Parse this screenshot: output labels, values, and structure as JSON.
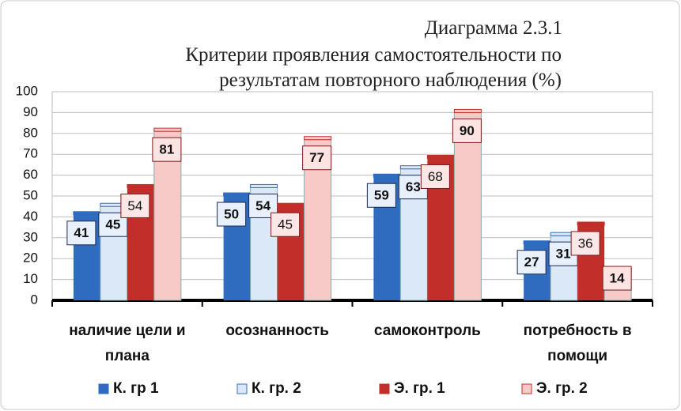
{
  "chart_data": {
    "type": "bar",
    "title": "Диаграмма 2.3.1",
    "subtitle": "Критерии проявления самостоятельности по результатам повторного наблюдения (%)",
    "categories": [
      "наличие цели и плана",
      "осознанность",
      "самоконтроль",
      "потребность в помощи"
    ],
    "series": [
      {
        "name": "К. гр 1",
        "color": "#2f6cc0",
        "values": [
          41,
          50,
          59,
          27
        ]
      },
      {
        "name": "К. гр. 2",
        "color": "#dbe8f8",
        "values": [
          45,
          54,
          63,
          31
        ]
      },
      {
        "name": "Э. гр. 1",
        "color": "#c22f2a",
        "values": [
          54,
          45,
          68,
          36
        ]
      },
      {
        "name": "Э. гр.  2",
        "color": "#f7c9c7",
        "values": [
          81,
          77,
          90,
          14
        ]
      }
    ],
    "ylim": [
      0,
      100
    ],
    "yticks": [
      0,
      10,
      20,
      30,
      40,
      50,
      60,
      70,
      80,
      90,
      100
    ],
    "grid": true
  }
}
